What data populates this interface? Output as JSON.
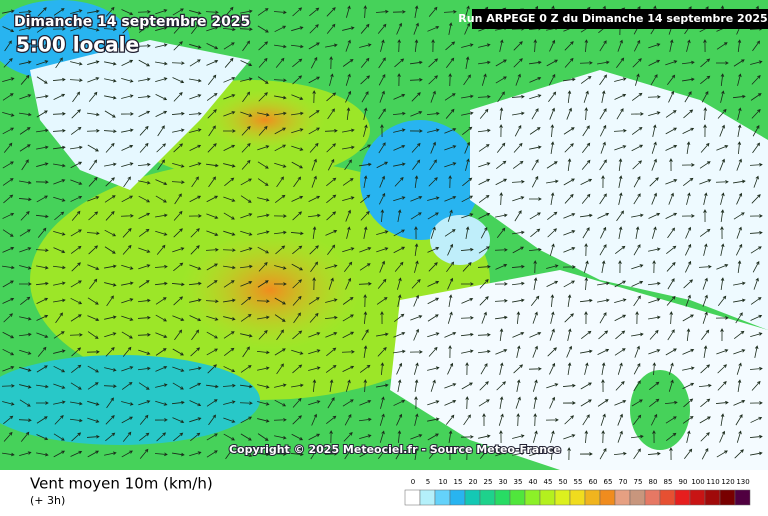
{
  "header": {
    "date": "Dimanche 14 septembre 2025",
    "time": "5:00 locale",
    "run": "Run ARPEGE 0 Z du Dimanche 14 septembre 2025"
  },
  "credit": "Copyright © 2025 Meteociel.fr - Source Meteo-France",
  "footer": {
    "title": "Vent moyen 10m (km/h)",
    "step": "(+ 3h)"
  },
  "legend": {
    "ticks": [
      0,
      5,
      10,
      15,
      20,
      25,
      30,
      35,
      40,
      45,
      50,
      55,
      60,
      65,
      70,
      75,
      80,
      85,
      90,
      100,
      110,
      120,
      130
    ],
    "colors": [
      "#ffffff",
      "#b4f0fa",
      "#64d2fa",
      "#28b4f0",
      "#14c8b4",
      "#1ed28c",
      "#28dc64",
      "#50e63c",
      "#8cf028",
      "#b4f01e",
      "#dcf01e",
      "#f0dc1e",
      "#f0b41e",
      "#f08c1e",
      "#e6a082",
      "#c8967d",
      "#e67864",
      "#e65032",
      "#e61e1e",
      "#c81414",
      "#a00a0a",
      "#780000",
      "#500040"
    ]
  }
}
